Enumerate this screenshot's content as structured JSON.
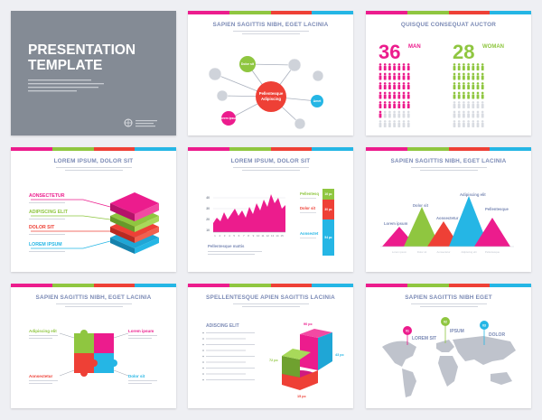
{
  "colors": {
    "pink": "#ec1c8d",
    "green": "#8fc640",
    "red": "#ee4036",
    "cyan": "#25b6e5",
    "grey": "#848b95",
    "title": "#7b8ab5"
  },
  "slide1": {
    "title_line1": "PRESENTATION",
    "title_line2": "TEMPLATE"
  },
  "slide2": {
    "title": "SAPIEN SAGITTIS NIBH, EGET LACINIA",
    "center_label_1": "Pellentesque",
    "center_label_2": "Adipiscing",
    "dolor": "Dolor sit",
    "lorem": "Lorem ipsum",
    "amet": "Amet"
  },
  "slide3": {
    "title": "QUISQUE CONSEQUAT AUCTOR",
    "man_value": "36",
    "man_label": "MAN",
    "woman_value": "28",
    "woman_label": "WOMAN"
  },
  "slide4": {
    "title": "LOREM IPSUM, DOLOR SIT",
    "items": [
      "AONSECTETUR",
      "ADIPISCING ELIT",
      "DOLOR SIT",
      "LOREM IPSUM"
    ]
  },
  "slide5": {
    "title": "LOREM IPSUM, DOLOR SIT",
    "caption": "Pellentesque mattis",
    "y_ticks": [
      "40",
      "30",
      "20",
      "10"
    ],
    "x_ticks": [
      "1",
      "2",
      "3",
      "4",
      "5",
      "6",
      "7",
      "8",
      "9",
      "10",
      "11",
      "12",
      "13",
      "14",
      "15"
    ],
    "legend": [
      "Pellentesq",
      "Dolor sit",
      "Aonsectet"
    ],
    "bar_labels": [
      "16 pc",
      "30 pc",
      "54 pc"
    ]
  },
  "slide6": {
    "title": "SAPIEN SAGITTIS NIBH, EGET LACINIA",
    "labels": [
      "Lorem ipsum",
      "Dolor sit",
      "Aonsectetur",
      "Adipiscing elit",
      "Pellentesque"
    ]
  },
  "slide7": {
    "title": "SAPIEN SAGITTIS NIBH, EGET LACINIA",
    "labels": [
      "Adipiscing elit",
      "Lorem ipsum",
      "Aonsectetur",
      "Dolor sit"
    ]
  },
  "slide8": {
    "title": "SPELLENTESQUE APIEN SAGITTIS LACINIA",
    "subtitle": "ADISCING ELIT",
    "values": [
      "90 pc",
      "43 pc",
      "72 pc",
      "15 pc"
    ]
  },
  "slide9": {
    "title": "SAPIEN SAGITTIS NIBH EGET",
    "pins": [
      "01",
      "02",
      "03"
    ],
    "labels": [
      "LOREM SIT",
      "IPSUM",
      "DOLOR"
    ]
  }
}
